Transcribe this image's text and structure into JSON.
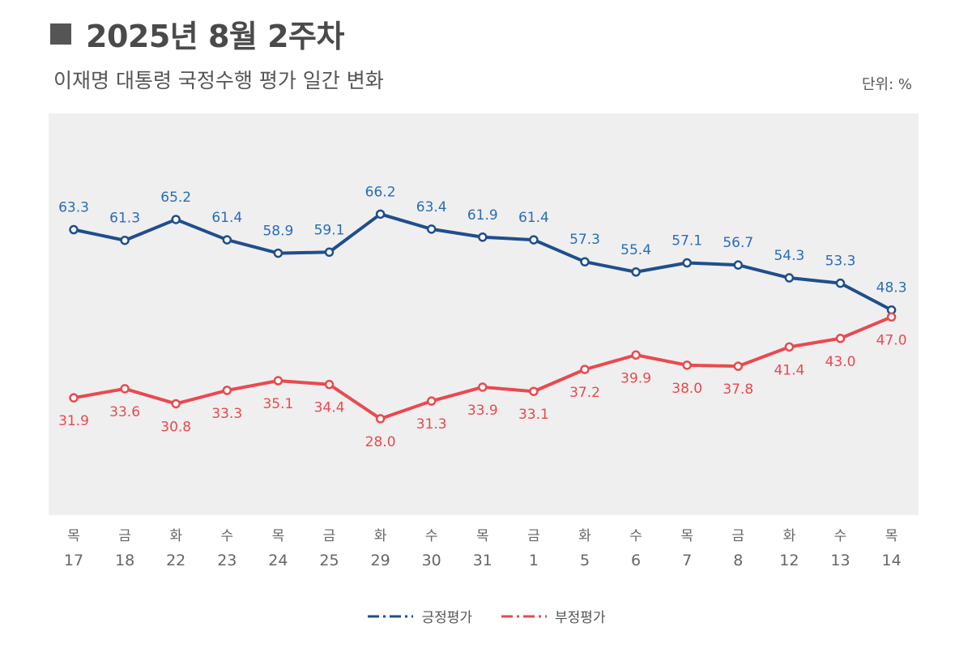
{
  "header": {
    "title": "2025년 8월 2주차",
    "subtitle": "이재명 대통령 국정수행 평가 일간 변화",
    "unit": "단위: %"
  },
  "colors": {
    "positive": "#1f4e8c",
    "positive_label": "#2a6db5",
    "negative": "#e84a4f",
    "negative_label": "#e84a4f",
    "plot_bg": "#efefef",
    "title_square": "#555555"
  },
  "chart_data": {
    "type": "line",
    "categories": [
      {
        "day": "목",
        "date": "17"
      },
      {
        "day": "금",
        "date": "18"
      },
      {
        "day": "화",
        "date": "22"
      },
      {
        "day": "수",
        "date": "23"
      },
      {
        "day": "목",
        "date": "24"
      },
      {
        "day": "금",
        "date": "25"
      },
      {
        "day": "화",
        "date": "29"
      },
      {
        "day": "수",
        "date": "30"
      },
      {
        "day": "목",
        "date": "31"
      },
      {
        "day": "금",
        "date": "1"
      },
      {
        "day": "화",
        "date": "5"
      },
      {
        "day": "수",
        "date": "6"
      },
      {
        "day": "목",
        "date": "7"
      },
      {
        "day": "금",
        "date": "8"
      },
      {
        "day": "화",
        "date": "12"
      },
      {
        "day": "수",
        "date": "13"
      },
      {
        "day": "목",
        "date": "14"
      }
    ],
    "series": [
      {
        "name": "긍정평가",
        "values": [
          63.3,
          61.3,
          65.2,
          61.4,
          58.9,
          59.1,
          66.2,
          63.4,
          61.9,
          61.4,
          57.3,
          55.4,
          57.1,
          56.7,
          54.3,
          53.3,
          48.3
        ],
        "labels": [
          "63.3",
          "61.3",
          "65.2",
          "61.4",
          "58.9",
          "59.1",
          "66.2",
          "63.4",
          "61.9",
          "61.4",
          "57.3",
          "55.4",
          "57.1",
          "56.7",
          "54.3",
          "53.3",
          "48.3"
        ]
      },
      {
        "name": "부정평가",
        "values": [
          31.9,
          33.6,
          30.8,
          33.3,
          35.1,
          34.4,
          28.0,
          31.3,
          33.9,
          33.1,
          37.2,
          39.9,
          38.0,
          37.8,
          41.4,
          43.0,
          47.0
        ],
        "labels": [
          "31.9",
          "33.6",
          "30.8",
          "33.3",
          "35.1",
          "34.4",
          "28.0",
          "31.3",
          "33.9",
          "33.1",
          "37.2",
          "39.9",
          "38.0",
          "37.8",
          "41.4",
          "43.0",
          "47.0"
        ]
      }
    ],
    "grid": false,
    "legend_position": "bottom-center"
  }
}
